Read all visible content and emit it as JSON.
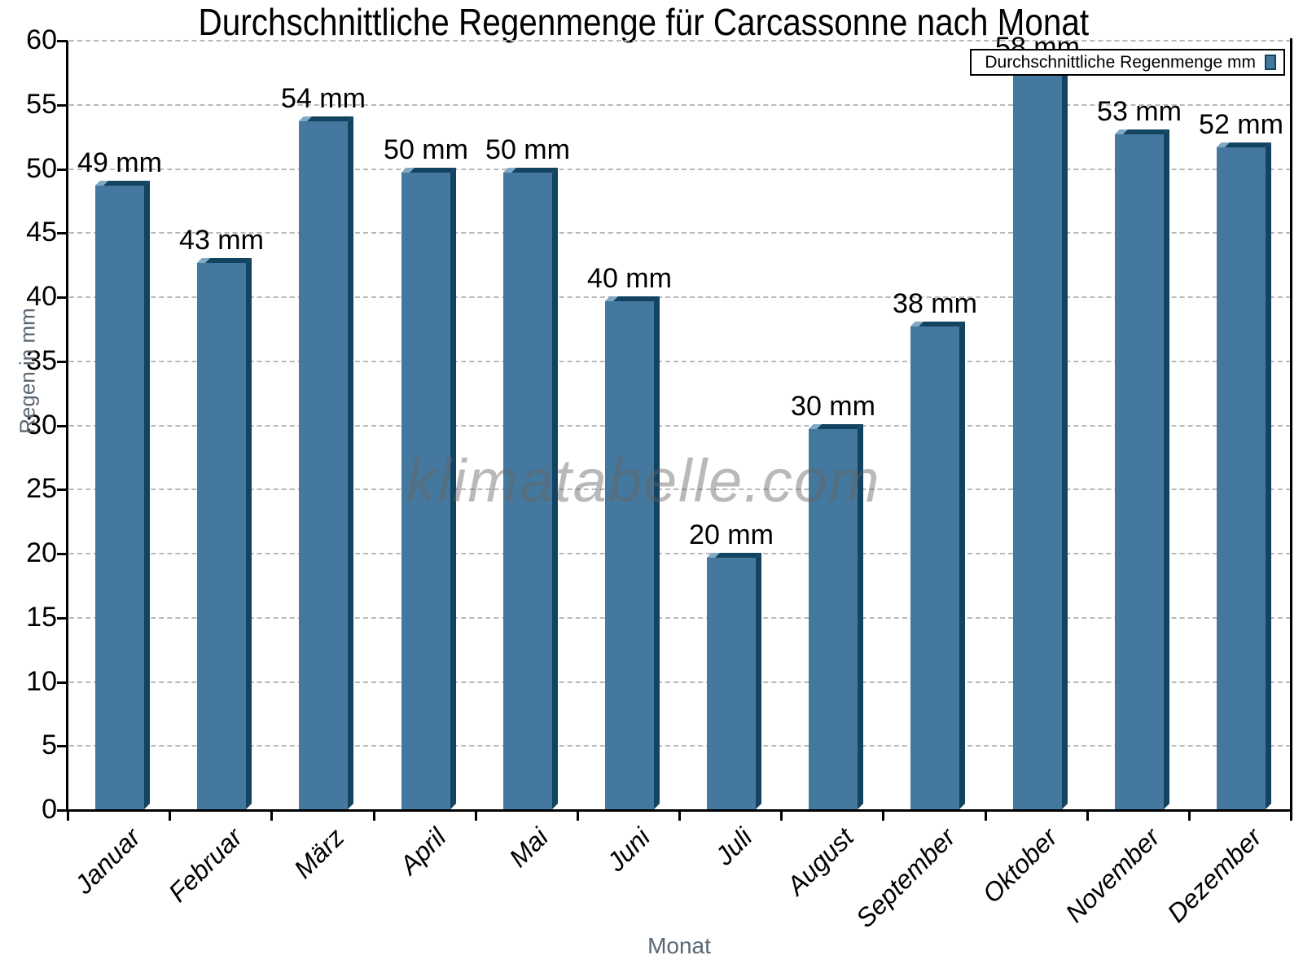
{
  "chart_data": {
    "type": "bar",
    "title": "Durchschnittliche Regenmenge für Carcassonne nach Monat",
    "xlabel": "Monat",
    "ylabel": "Regen in mm",
    "categories": [
      "Januar",
      "Februar",
      "März",
      "April",
      "Mai",
      "Juni",
      "Juli",
      "August",
      "September",
      "Oktober",
      "November",
      "Dezember"
    ],
    "values": [
      49,
      43,
      54,
      50,
      50,
      40,
      20,
      30,
      38,
      58,
      53,
      52
    ],
    "bar_labels": [
      "49 mm",
      "43 mm",
      "54 mm",
      "50 mm",
      "50 mm",
      "40 mm",
      "20 mm",
      "30 mm",
      "38 mm",
      "58 mm",
      "53 mm",
      "52 mm"
    ],
    "ylim": [
      0,
      60
    ],
    "ytick_step": 5,
    "grid": "horizontal-dashed",
    "legend": {
      "label": "Durchschnittliche Regenmenge mm",
      "position": "top-right"
    },
    "watermark": "klimatabelle.com",
    "colors": {
      "bar_face": "#45789E",
      "bar_edge_dark": "#124360",
      "bar_highlight": "#7FA9C4",
      "gridline": "#b9b9b9",
      "axis": "#000000",
      "axis_title_text": "#5a6672",
      "watermark": "rgba(100,100,100,0.45)"
    }
  }
}
